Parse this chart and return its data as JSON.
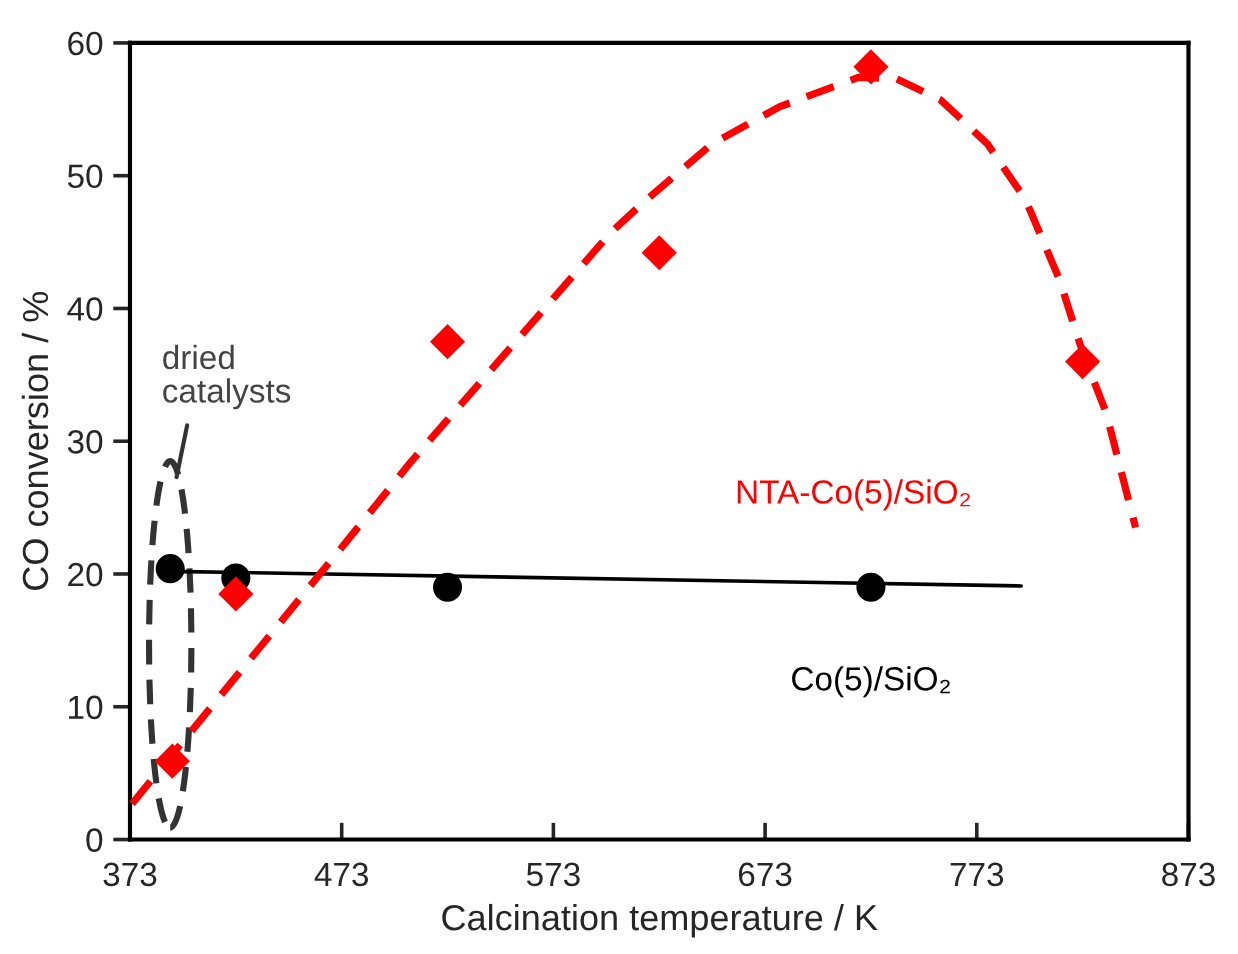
{
  "chart_data": {
    "type": "scatter",
    "xlabel": "Calcination temperature / K",
    "ylabel": "CO conversion / %",
    "xlim": [
      373,
      873
    ],
    "xticks": [
      373,
      473,
      573,
      673,
      773,
      873
    ],
    "ylim": [
      0,
      60
    ],
    "yticks": [
      0,
      10,
      20,
      30,
      40,
      50,
      60
    ],
    "grid": false,
    "legend": false,
    "series": [
      {
        "name": "Co(5)/SiO₂",
        "marker": "circle",
        "color": "#000000",
        "x": [
          392,
          423,
          523,
          723
        ],
        "values": [
          20.4,
          19.7,
          19.0,
          19.0
        ]
      },
      {
        "name": "NTA-Co(5)/SiO₂",
        "marker": "diamond",
        "color": "#ff0000",
        "x": [
          393,
          423,
          523,
          623,
          723,
          823
        ],
        "values": [
          5.9,
          18.5,
          37.5,
          44.2,
          58.2,
          36.0
        ]
      },
      {
        "type": "line",
        "line_style": "solid",
        "marker": "none",
        "color": "#000000",
        "x": [
          392,
          794
        ],
        "values": [
          20.2,
          19.1
        ]
      },
      {
        "type": "line",
        "line_style": "dashed",
        "marker": "none",
        "color": "#ff0000",
        "x": [
          374,
          473,
          506,
          600,
          617,
          648,
          680,
          717,
          735,
          756,
          778,
          796,
          812,
          823,
          834,
          848
        ],
        "values": [
          2.7,
          22.0,
          28.5,
          45.7,
          48.2,
          52.4,
          55.2,
          57.4,
          57.3,
          55.7,
          52.4,
          48.2,
          42.2,
          36.7,
          32.2,
          23.5
        ]
      }
    ],
    "annotations": [
      "dried catalysts"
    ]
  }
}
